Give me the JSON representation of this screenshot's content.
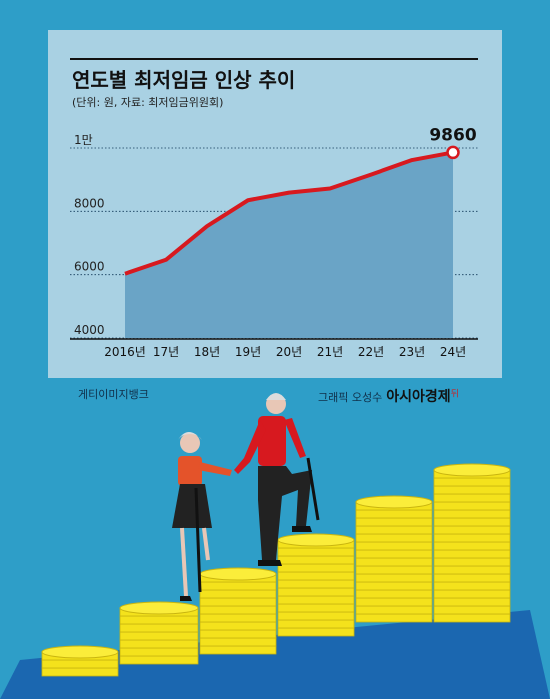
{
  "header": {
    "title": "연도별 최저임금 인상 추이",
    "subtitle": "(단위: 원, 자료: 최저임금위원회)"
  },
  "credits": {
    "photo": "게티이미지뱅크",
    "graphic": "그래픽 오성수",
    "brand": "아시아경제",
    "brand_mark": "뒤"
  },
  "colors": {
    "background": "#2e9ec8",
    "panel": "#a9d1e3",
    "area_fill": "#6aa4c6",
    "line": "#d7191f",
    "coin": "#f4e21c"
  },
  "chart_data": {
    "type": "area",
    "title": "연도별 최저임금 인상 추이",
    "subtitle": "(단위: 원, 자료: 최저임금위원회)",
    "categories": [
      "2016년",
      "17년",
      "18년",
      "19년",
      "20년",
      "21년",
      "22년",
      "23년",
      "24년"
    ],
    "values": [
      6030,
      6470,
      7530,
      8350,
      8590,
      8720,
      9160,
      9620,
      9860
    ],
    "y_ticks": [
      {
        "value": 4000,
        "label": "4000"
      },
      {
        "value": 6000,
        "label": "6000"
      },
      {
        "value": 8000,
        "label": "8000"
      },
      {
        "value": 10000,
        "label": "1만"
      }
    ],
    "ylim": [
      4000,
      10000
    ],
    "annotation": {
      "category": "24년",
      "label": "9860"
    },
    "grid": true,
    "xlabel": "",
    "ylabel": ""
  }
}
